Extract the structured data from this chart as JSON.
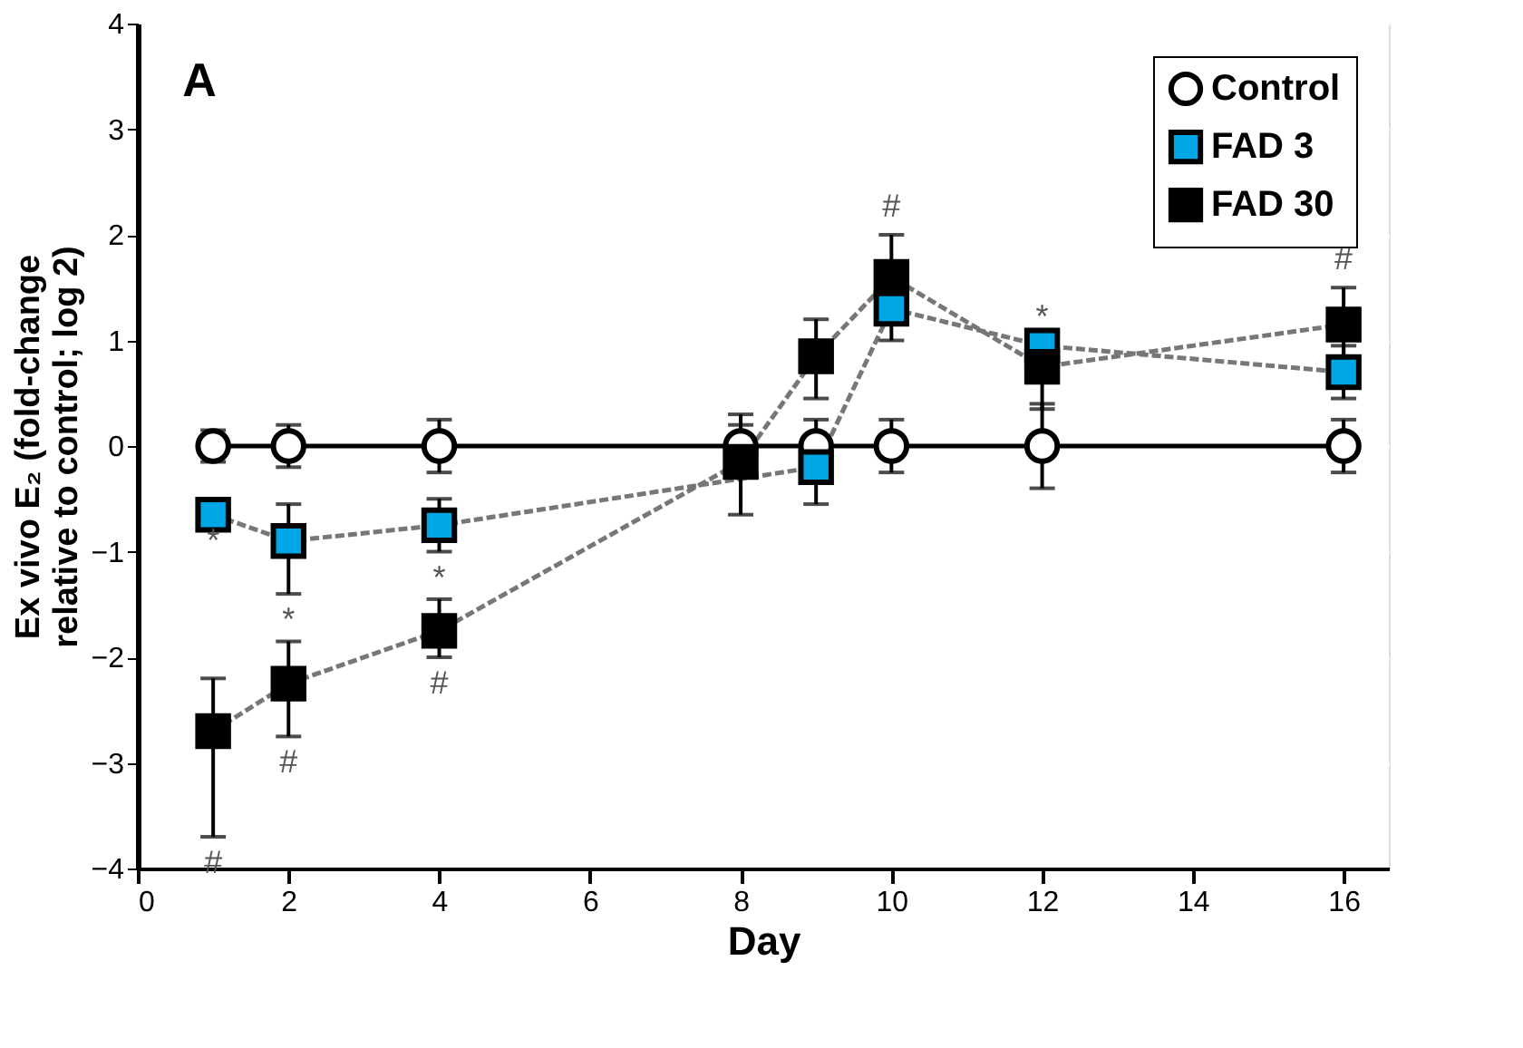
{
  "chart_data": {
    "type": "line",
    "xlabel": "Day",
    "ylabel": "Ex vivo E₂ (fold-change\nrelative to control; log 2)",
    "x": [
      1,
      2,
      4,
      8,
      9,
      10,
      12,
      16
    ],
    "series": [
      {
        "name": "Control",
        "color": "#ffffff",
        "marker": "circle",
        "line_style": "solid",
        "values": [
          0,
          0,
          0,
          0,
          0,
          0,
          0,
          0
        ],
        "errors": [
          0.15,
          0.2,
          0.25,
          0.2,
          0.25,
          0.25,
          0.4,
          0.25
        ]
      },
      {
        "name": "FAD 3",
        "color": "#00a6e6",
        "marker": "square",
        "line_style": "dashed",
        "values": [
          -0.65,
          -0.9,
          -0.75,
          null,
          -0.2,
          1.3,
          0.95,
          0.7
        ],
        "errors": [
          null,
          [
            -1.4,
            -0.55
          ],
          0.25,
          null,
          [
            -0.55,
            -0.2
          ],
          [
            1.0,
            1.3
          ],
          null,
          [
            0.45,
            0.95
          ]
        ]
      },
      {
        "name": "FAD 30",
        "color": "#000000",
        "marker": "square",
        "line_style": "dashed",
        "values": [
          -2.7,
          -2.25,
          -1.75,
          -0.15,
          0.85,
          1.6,
          0.75,
          1.15
        ],
        "errors": [
          [
            -3.7,
            -2.2
          ],
          [
            -2.75,
            -1.85
          ],
          [
            -2.0,
            -1.45
          ],
          [
            -0.65,
            0.3
          ],
          [
            0.45,
            1.2
          ],
          [
            1.6,
            2.0
          ],
          [
            0.35,
            1.1
          ],
          0.35
        ]
      }
    ],
    "xlim": [
      0,
      16.6
    ],
    "xticks": [
      0,
      2,
      4,
      6,
      8,
      10,
      12,
      14,
      16
    ],
    "ylim": [
      -4,
      4
    ],
    "yticks": [
      -4,
      -3,
      -2,
      -1,
      0,
      1,
      2,
      3,
      4
    ],
    "grid": "y",
    "legend": "top right",
    "annotations": [
      "A",
      {
        "text": "*",
        "x": 1,
        "y": -0.65
      },
      {
        "text": "*",
        "x": 2,
        "y": -1.4
      },
      {
        "text": "*",
        "x": 4,
        "y": -1.0
      },
      {
        "text": "#",
        "x": 1,
        "y": -3.7
      },
      {
        "text": "#",
        "x": 2,
        "y": -2.75
      },
      {
        "text": "#",
        "x": 4,
        "y": -2.0
      },
      {
        "text": "#",
        "x": 10,
        "y": 2.0
      },
      {
        "text": "*",
        "x": 12,
        "y": 0.95
      },
      {
        "text": "#",
        "x": 16,
        "y": 1.5
      }
    ]
  }
}
